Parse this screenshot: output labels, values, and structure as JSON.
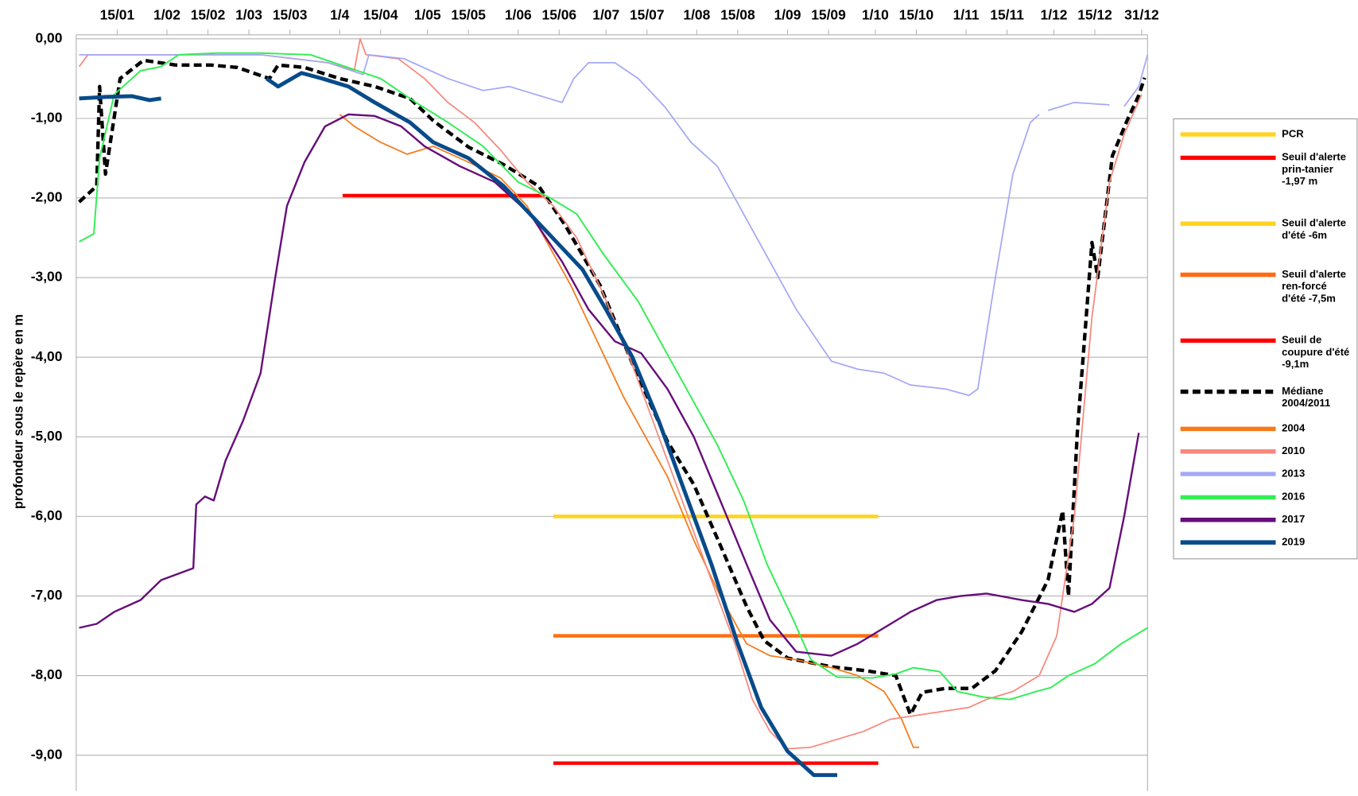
{
  "chart_data": {
    "type": "line",
    "y_label": "profondeur sous le repère en m",
    "xlim": [
      1,
      367
    ],
    "ylim": [
      -9.45,
      0.05
    ],
    "grid": true,
    "legend": "right",
    "xticks": [
      {
        "value": 15,
        "label": "15/01"
      },
      {
        "value": 32,
        "label": "1/02"
      },
      {
        "value": 46,
        "label": "15/02"
      },
      {
        "value": 60,
        "label": "1/03"
      },
      {
        "value": 74,
        "label": "15/03"
      },
      {
        "value": 91,
        "label": "1/4"
      },
      {
        "value": 105,
        "label": "15/04"
      },
      {
        "value": 121,
        "label": "1/05"
      },
      {
        "value": 135,
        "label": "15/05"
      },
      {
        "value": 152,
        "label": "1/06"
      },
      {
        "value": 166,
        "label": "15/06"
      },
      {
        "value": 182,
        "label": "1/07"
      },
      {
        "value": 196,
        "label": "15/07"
      },
      {
        "value": 213,
        "label": "1/08"
      },
      {
        "value": 227,
        "label": "15/08"
      },
      {
        "value": 244,
        "label": "1/09"
      },
      {
        "value": 258,
        "label": "15/09"
      },
      {
        "value": 274,
        "label": "1/10"
      },
      {
        "value": 288,
        "label": "15/10"
      },
      {
        "value": 305,
        "label": "1/11"
      },
      {
        "value": 319,
        "label": "15/11"
      },
      {
        "value": 335,
        "label": "1/12"
      },
      {
        "value": 349,
        "label": "15/12"
      },
      {
        "value": 365,
        "label": "31/12"
      }
    ],
    "yticks": [
      {
        "value": 0,
        "label": "0,00"
      },
      {
        "value": -1,
        "label": "-1,00"
      },
      {
        "value": -2,
        "label": "-2,00"
      },
      {
        "value": -3,
        "label": "-3,00"
      },
      {
        "value": -4,
        "label": "-4,00"
      },
      {
        "value": -5,
        "label": "-5,00"
      },
      {
        "value": -6,
        "label": "-6,00"
      },
      {
        "value": -7,
        "label": "-7,00"
      },
      {
        "value": -8,
        "label": "-8,00"
      },
      {
        "value": -9,
        "label": "-9,00"
      }
    ],
    "series": [
      {
        "name": "PCR",
        "color": "#ffd320",
        "x": [
          164,
          275
        ],
        "values": [
          -6,
          -6
        ]
      },
      {
        "name": "Seuil d'alerte prin-tanier -1,97 m",
        "color": "#ff0000",
        "x": [
          92,
          161
        ],
        "values": [
          -1.97,
          -1.97
        ]
      },
      {
        "name": "Seuil d'alerte d'été -6m",
        "color": "#ffd320",
        "x": [
          164,
          275
        ],
        "values": [
          -6,
          -6
        ]
      },
      {
        "name": "Seuil d'alerte ren-forcé d'été -7,5m",
        "color": "#ff6d10",
        "x": [
          164,
          275
        ],
        "values": [
          -7.5,
          -7.5
        ]
      },
      {
        "name": "Seuil de coupure d'été -9,1m",
        "color": "#ff0000",
        "x": [
          164,
          275
        ],
        "values": [
          -9.1,
          -9.1
        ]
      },
      {
        "name": "Médiane 2004/2011",
        "color": "#000000",
        "dash": "dashed",
        "x": [
          2,
          8,
          9,
          11,
          16,
          24,
          35,
          47,
          56,
          67,
          70,
          79,
          91,
          103,
          115,
          123,
          135,
          147,
          159,
          168,
          180,
          191,
          203,
          212,
          221,
          230,
          236,
          244,
          259,
          271,
          281,
          286,
          290,
          298,
          307,
          315,
          324,
          333,
          338,
          340,
          343,
          348,
          350,
          355,
          360,
          364,
          366
        ],
        "values": [
          -2.05,
          -1.85,
          -0.6,
          -1.7,
          -0.5,
          -0.27,
          -0.33,
          -0.33,
          -0.36,
          -0.5,
          -0.33,
          -0.36,
          -0.5,
          -0.6,
          -0.75,
          -1.03,
          -1.36,
          -1.58,
          -1.85,
          -2.34,
          -3.1,
          -4.08,
          -5.06,
          -5.6,
          -6.36,
          -7.13,
          -7.56,
          -7.78,
          -7.89,
          -7.94,
          -8.0,
          -8.49,
          -8.21,
          -8.16,
          -8.16,
          -7.94,
          -7.45,
          -6.8,
          -5.93,
          -7.0,
          -4.95,
          -2.56,
          -3.0,
          -1.47,
          -1.03,
          -0.71,
          -0.49
        ]
      },
      {
        "name": "2004",
        "color": "#f57a1a",
        "x": [
          91,
          96,
          105,
          114,
          123,
          135,
          146,
          155,
          164,
          170,
          179,
          188,
          197,
          203,
          212,
          221,
          230,
          238,
          247,
          259,
          268,
          277,
          283,
          287,
          289
        ],
        "values": [
          -0.95,
          -1.1,
          -1.3,
          -1.45,
          -1.35,
          -1.55,
          -1.75,
          -2.1,
          -2.7,
          -3.1,
          -3.8,
          -4.5,
          -5.1,
          -5.5,
          -6.3,
          -7.0,
          -7.6,
          -7.75,
          -7.8,
          -7.9,
          -8.0,
          -8.2,
          -8.55,
          -8.9,
          -8.9
        ]
      },
      {
        "name": "2010",
        "color": "#f7887c",
        "x": [
          2,
          5,
          35,
          64,
          87,
          96,
          98,
          100,
          111,
          120,
          128,
          137,
          146,
          155,
          164,
          172,
          181,
          190,
          199,
          208,
          217,
          226,
          232,
          238,
          244,
          252,
          261,
          270,
          279,
          288,
          297,
          306,
          312,
          321,
          330,
          336,
          342,
          348,
          354,
          359,
          365
        ],
        "values": [
          -0.35,
          -0.2,
          -0.2,
          -0.2,
          -0.3,
          -0.4,
          0,
          -0.2,
          -0.25,
          -0.5,
          -0.8,
          -1.05,
          -1.4,
          -1.8,
          -2.1,
          -2.5,
          -3.2,
          -4.0,
          -4.9,
          -5.8,
          -6.7,
          -7.6,
          -8.3,
          -8.7,
          -8.92,
          -8.9,
          -8.8,
          -8.7,
          -8.55,
          -8.5,
          -8.45,
          -8.4,
          -8.3,
          -8.2,
          -8.0,
          -7.5,
          -6.0,
          -3.5,
          -1.8,
          -1.2,
          -0.7
        ]
      },
      {
        "name": "2013",
        "color": "#a4a8f5",
        "x": [
          2,
          35,
          64,
          87,
          99,
          101,
          113,
          128,
          140,
          149,
          158,
          167,
          171,
          176,
          185,
          193,
          202,
          211,
          220,
          229,
          238,
          247,
          259,
          268,
          277,
          286,
          298,
          306,
          309,
          315,
          321,
          327,
          330,
          null,
          333,
          342,
          354,
          null,
          359,
          364,
          367
        ],
        "values": [
          -0.2,
          -0.2,
          -0.2,
          -0.3,
          -0.45,
          -0.2,
          -0.25,
          -0.5,
          -0.65,
          -0.6,
          -0.7,
          -0.8,
          -0.5,
          -0.3,
          -0.3,
          -0.5,
          -0.85,
          -1.3,
          -1.6,
          -2.2,
          -2.8,
          -3.4,
          -4.05,
          -4.15,
          -4.2,
          -4.35,
          -4.4,
          -4.48,
          -4.4,
          -3.0,
          -1.7,
          -1.05,
          -0.95,
          null,
          -0.9,
          -0.8,
          -0.83,
          null,
          -0.85,
          -0.6,
          -0.2
        ]
      },
      {
        "name": "2016",
        "color": "#33ee55",
        "x": [
          2,
          7,
          9,
          14,
          23,
          30,
          36,
          49,
          64,
          81,
          93,
          105,
          117,
          128,
          140,
          152,
          163,
          172,
          181,
          193,
          202,
          211,
          220,
          229,
          237,
          246,
          252,
          261,
          273,
          281,
          287,
          296,
          302,
          311,
          320,
          329,
          334,
          340,
          349,
          358,
          367
        ],
        "values": [
          -2.55,
          -2.45,
          -1.5,
          -0.7,
          -0.4,
          -0.35,
          -0.2,
          -0.18,
          -0.18,
          -0.2,
          -0.35,
          -0.5,
          -0.8,
          -1.05,
          -1.35,
          -1.8,
          -2.0,
          -2.2,
          -2.7,
          -3.3,
          -3.9,
          -4.5,
          -5.1,
          -5.8,
          -6.6,
          -7.3,
          -7.8,
          -8.02,
          -8.03,
          -7.98,
          -7.9,
          -7.95,
          -8.2,
          -8.27,
          -8.3,
          -8.2,
          -8.15,
          -8.0,
          -7.85,
          -7.6,
          -7.4
        ]
      },
      {
        "name": "2017",
        "color": "#660e7a",
        "x": [
          2,
          8,
          14,
          23,
          30,
          41,
          42,
          45,
          48,
          52,
          58,
          64,
          69,
          73,
          79,
          86,
          94,
          103,
          112,
          120,
          132,
          144,
          156,
          167,
          176,
          185,
          194,
          203,
          212,
          221,
          230,
          238,
          247,
          259,
          268,
          277,
          286,
          295,
          303,
          312,
          324,
          333,
          342,
          348,
          354,
          359,
          364
        ],
        "values": [
          -7.4,
          -7.35,
          -7.2,
          -7.05,
          -6.8,
          -6.65,
          -5.85,
          -5.75,
          -5.8,
          -5.3,
          -4.8,
          -4.2,
          -3.0,
          -2.1,
          -1.55,
          -1.1,
          -0.95,
          -0.97,
          -1.1,
          -1.35,
          -1.6,
          -1.8,
          -2.2,
          -2.8,
          -3.4,
          -3.8,
          -3.95,
          -4.4,
          -5.0,
          -5.8,
          -6.6,
          -7.3,
          -7.7,
          -7.75,
          -7.6,
          -7.4,
          -7.2,
          -7.05,
          -7.0,
          -6.97,
          -7.05,
          -7.1,
          -7.2,
          -7.1,
          -6.9,
          -6.0,
          -4.95
        ]
      },
      {
        "name": "2019",
        "color": "#084b8a",
        "x": [
          2,
          11,
          20,
          26,
          30,
          null,
          66,
          70,
          78,
          85,
          94,
          103,
          115,
          123,
          135,
          147,
          156,
          165,
          174,
          182,
          191,
          200,
          209,
          218,
          227,
          235,
          244,
          253,
          261
        ],
        "values": [
          -0.75,
          -0.73,
          -0.72,
          -0.77,
          -0.75,
          null,
          -0.5,
          -0.6,
          -0.43,
          -0.5,
          -0.6,
          -0.8,
          -1.05,
          -1.3,
          -1.5,
          -1.85,
          -2.2,
          -2.55,
          -2.9,
          -3.4,
          -4.0,
          -4.8,
          -5.7,
          -6.6,
          -7.6,
          -8.4,
          -8.95,
          -9.25,
          -9.25
        ]
      }
    ]
  }
}
